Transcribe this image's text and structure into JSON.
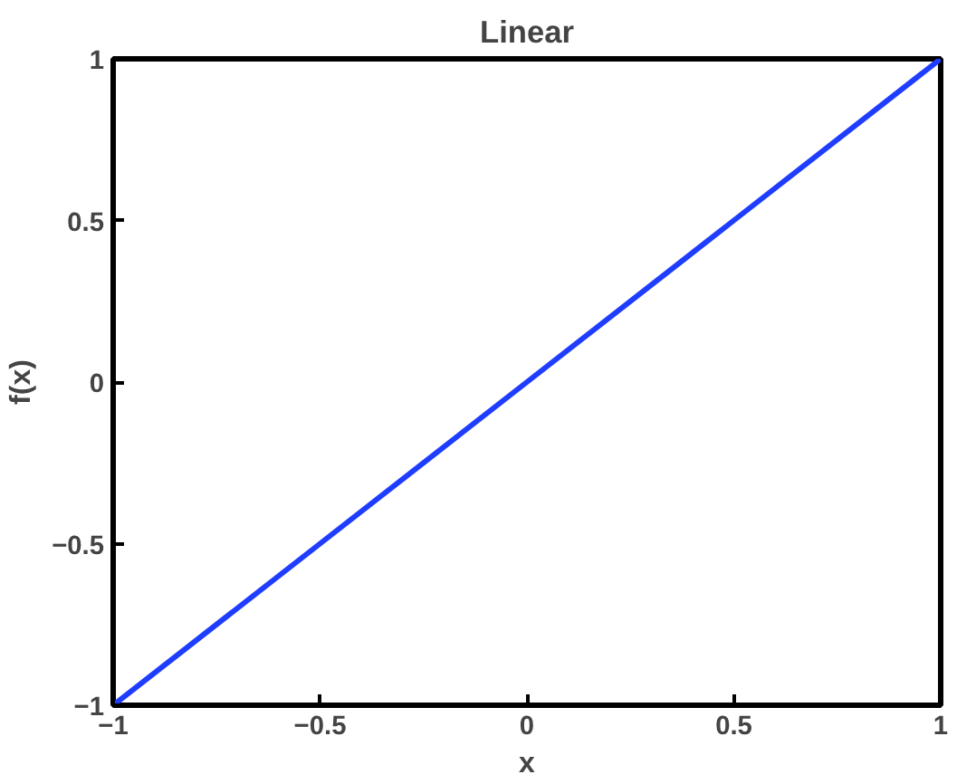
{
  "chart_data": {
    "type": "line",
    "title": "Linear",
    "xlabel": "x",
    "ylabel": "f(x)",
    "x": [
      -1,
      -0.5,
      0,
      0.5,
      1
    ],
    "series": [
      {
        "color": "#1f3dff",
        "values": [
          -1,
          -0.5,
          0,
          0.5,
          1
        ]
      }
    ],
    "xlim": [
      -1,
      1
    ],
    "ylim": [
      -1,
      1
    ],
    "xticks": [
      {
        "value": -1,
        "label": "−1"
      },
      {
        "value": -0.5,
        "label": "−0.5"
      },
      0,
      0.5,
      1
    ],
    "yticks": [
      {
        "value": -1,
        "label": "−1"
      },
      {
        "value": -0.5,
        "label": "−0.5"
      },
      0,
      0.5,
      1
    ],
    "grid": false,
    "marker": "none",
    "line_style": "solid"
  }
}
